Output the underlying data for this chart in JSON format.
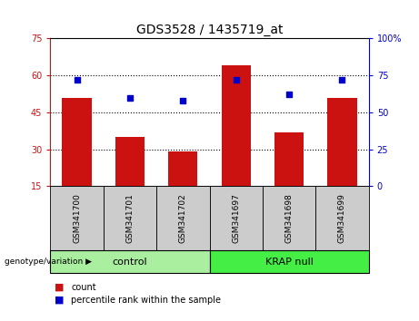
{
  "title": "GDS3528 / 1435719_at",
  "categories": [
    "GSM341700",
    "GSM341701",
    "GSM341702",
    "GSM341697",
    "GSM341698",
    "GSM341699"
  ],
  "bar_values": [
    51,
    35,
    29,
    64,
    37,
    51
  ],
  "dot_values": [
    72,
    60,
    58,
    72,
    62,
    72
  ],
  "bar_color": "#cc1111",
  "dot_color": "#0000cc",
  "ylim_left": [
    15,
    75
  ],
  "ylim_right": [
    0,
    100
  ],
  "yticks_left": [
    15,
    30,
    45,
    60,
    75
  ],
  "yticks_right": [
    0,
    25,
    50,
    75,
    100
  ],
  "ytick_labels_right": [
    "0",
    "25",
    "50",
    "75",
    "100%"
  ],
  "groups": [
    {
      "label": "control",
      "start": 0,
      "end": 3,
      "color": "#aaeea0"
    },
    {
      "label": "KRAP null",
      "start": 3,
      "end": 6,
      "color": "#44ee44"
    }
  ],
  "group_label_prefix": "genotype/variation",
  "legend_items": [
    {
      "label": "count",
      "color": "#cc1111"
    },
    {
      "label": "percentile rank within the sample",
      "color": "#0000cc"
    }
  ],
  "bar_width": 0.55,
  "background_color": "#ffffff",
  "plot_bg_color": "#ffffff",
  "label_box_color": "#cccccc",
  "grid_color": "#000000"
}
